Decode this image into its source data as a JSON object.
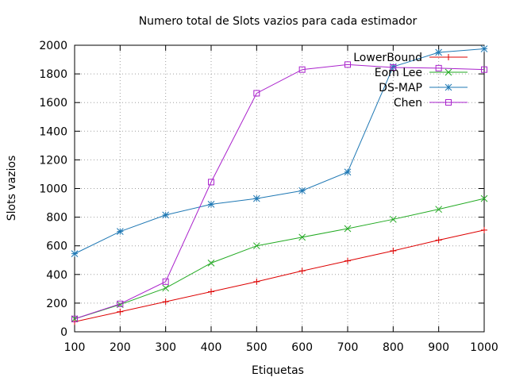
{
  "chart_data": {
    "type": "line",
    "title": "Numero total de Slots vazios para cada estimador",
    "xlabel": "Etiquetas",
    "ylabel": "Slots vazios",
    "x": [
      100,
      200,
      300,
      400,
      500,
      600,
      700,
      800,
      900,
      1000
    ],
    "xlim": [
      100,
      1000
    ],
    "ylim": [
      0,
      2000
    ],
    "xticks": [
      100,
      200,
      300,
      400,
      500,
      600,
      700,
      800,
      900,
      1000
    ],
    "yticks": [
      0,
      200,
      400,
      600,
      800,
      1000,
      1200,
      1400,
      1600,
      1800,
      2000
    ],
    "grid": true,
    "legend_position": "top-right",
    "series": [
      {
        "name": "LowerBound",
        "color": "#dd0000",
        "marker": "plus",
        "values": [
          70,
          140,
          210,
          280,
          350,
          425,
          495,
          565,
          640,
          710
        ]
      },
      {
        "name": "Eom Lee",
        "color": "#22aa22",
        "marker": "cross",
        "values": [
          90,
          190,
          305,
          480,
          600,
          660,
          720,
          785,
          855,
          930
        ]
      },
      {
        "name": "DS-MAP",
        "color": "#1f78b4",
        "marker": "star",
        "values": [
          545,
          700,
          815,
          890,
          930,
          985,
          1115,
          1850,
          1950,
          1975
        ]
      },
      {
        "name": "Chen",
        "color": "#aa22cc",
        "marker": "square",
        "values": [
          90,
          195,
          350,
          1045,
          1665,
          1830,
          1865,
          1845,
          1840,
          1830
        ]
      }
    ]
  }
}
